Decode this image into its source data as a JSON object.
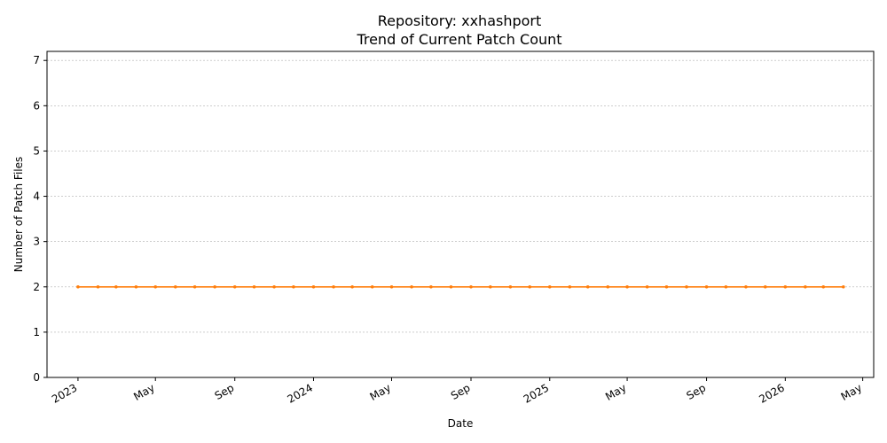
{
  "chart_data": {
    "type": "line",
    "title": "Repository: xxhashport",
    "subtitle": "Trend of Current Patch Count",
    "xlabel": "Date",
    "ylabel": "Number of Patch Files",
    "x_range": [
      "2022-11-14",
      "2026-05-18"
    ],
    "ylim": [
      0,
      7.2
    ],
    "x_ticks": [
      {
        "date": "2023-01-01",
        "label": "2023"
      },
      {
        "date": "2023-05-01",
        "label": "May"
      },
      {
        "date": "2023-09-01",
        "label": "Sep"
      },
      {
        "date": "2024-01-01",
        "label": "2024"
      },
      {
        "date": "2024-05-01",
        "label": "May"
      },
      {
        "date": "2024-09-01",
        "label": "Sep"
      },
      {
        "date": "2025-01-01",
        "label": "2025"
      },
      {
        "date": "2025-05-01",
        "label": "May"
      },
      {
        "date": "2025-09-01",
        "label": "Sep"
      },
      {
        "date": "2026-01-01",
        "label": "2026"
      },
      {
        "date": "2026-05-01",
        "label": "May"
      }
    ],
    "y_ticks": [
      0,
      1,
      2,
      3,
      4,
      5,
      6,
      7
    ],
    "grid": "horizontal",
    "series": [
      {
        "color": "#ff7f0e",
        "x": [
          "2023-01-01",
          "2023-02-01",
          "2023-03-01",
          "2023-04-01",
          "2023-05-01",
          "2023-06-01",
          "2023-07-01",
          "2023-08-01",
          "2023-09-01",
          "2023-10-01",
          "2023-11-01",
          "2023-12-01",
          "2024-01-01",
          "2024-02-01",
          "2024-03-01",
          "2024-04-01",
          "2024-05-01",
          "2024-06-01",
          "2024-07-01",
          "2024-08-01",
          "2024-09-01",
          "2024-10-01",
          "2024-11-01",
          "2024-12-01",
          "2025-01-01",
          "2025-02-01",
          "2025-03-01",
          "2025-04-01",
          "2025-05-01",
          "2025-06-01",
          "2025-07-01",
          "2025-08-01",
          "2025-09-01",
          "2025-10-01",
          "2025-11-01",
          "2025-12-01",
          "2026-01-01",
          "2026-02-01",
          "2026-03-01",
          "2026-04-01"
        ],
        "y": [
          2,
          2,
          2,
          2,
          2,
          2,
          2,
          2,
          2,
          2,
          2,
          2,
          2,
          2,
          2,
          2,
          2,
          2,
          2,
          2,
          2,
          2,
          2,
          2,
          2,
          2,
          2,
          2,
          2,
          2,
          2,
          2,
          2,
          2,
          2,
          2,
          2,
          2,
          2,
          2
        ]
      }
    ]
  }
}
